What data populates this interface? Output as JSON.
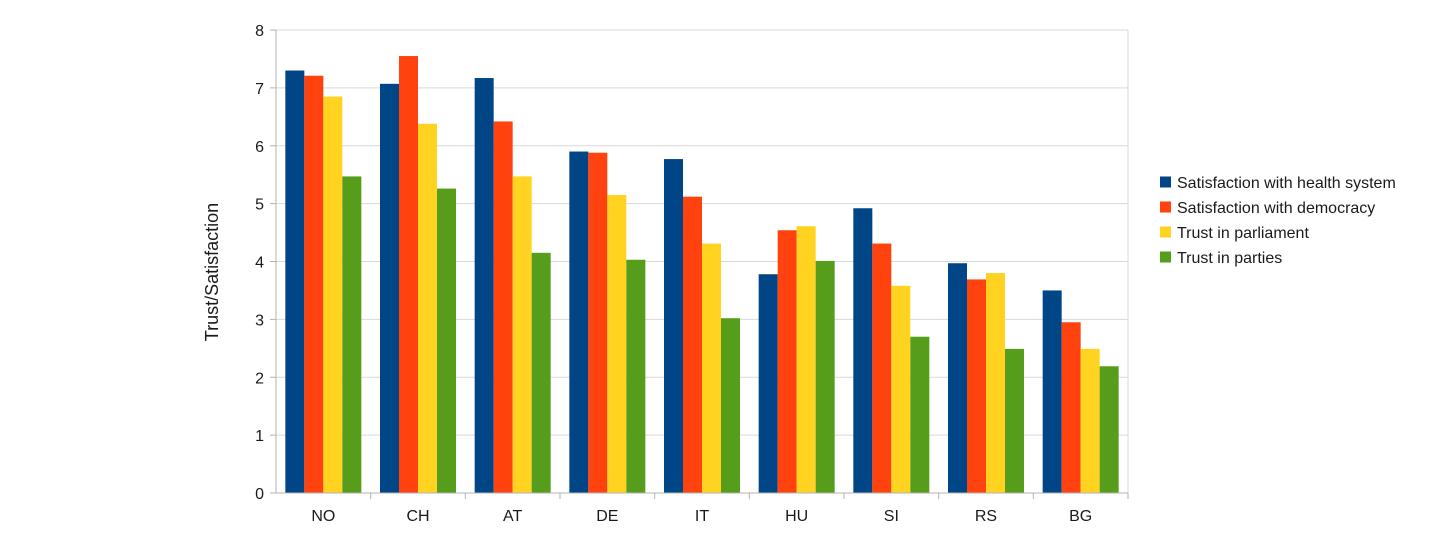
{
  "chart_data": {
    "type": "bar",
    "title": "",
    "xlabel": "",
    "ylabel": "Trust/Satisfaction",
    "ylim": [
      0,
      8
    ],
    "yticks": [
      0,
      1,
      2,
      3,
      4,
      5,
      6,
      7,
      8
    ],
    "grid": true,
    "legend_position": "right",
    "categories": [
      "NO",
      "CH",
      "AT",
      "DE",
      "IT",
      "HU",
      "SI",
      "RS",
      "BG"
    ],
    "series": [
      {
        "name": "Satisfaction with health system",
        "color": "#004586",
        "values": [
          7.3,
          7.07,
          7.17,
          5.9,
          5.77,
          3.78,
          4.92,
          3.97,
          3.5
        ]
      },
      {
        "name": "Satisfaction with democracy",
        "color": "#ff420e",
        "values": [
          7.21,
          7.55,
          6.42,
          5.88,
          5.12,
          4.54,
          4.31,
          3.69,
          2.95
        ]
      },
      {
        "name": "Trust in parliament",
        "color": "#ffd320",
        "values": [
          6.85,
          6.38,
          5.47,
          5.15,
          4.31,
          4.61,
          3.58,
          3.8,
          2.49
        ]
      },
      {
        "name": "Trust in parties",
        "color": "#579d1c",
        "values": [
          5.47,
          5.26,
          4.15,
          4.03,
          3.02,
          4.01,
          2.7,
          2.49,
          2.19
        ]
      }
    ]
  }
}
